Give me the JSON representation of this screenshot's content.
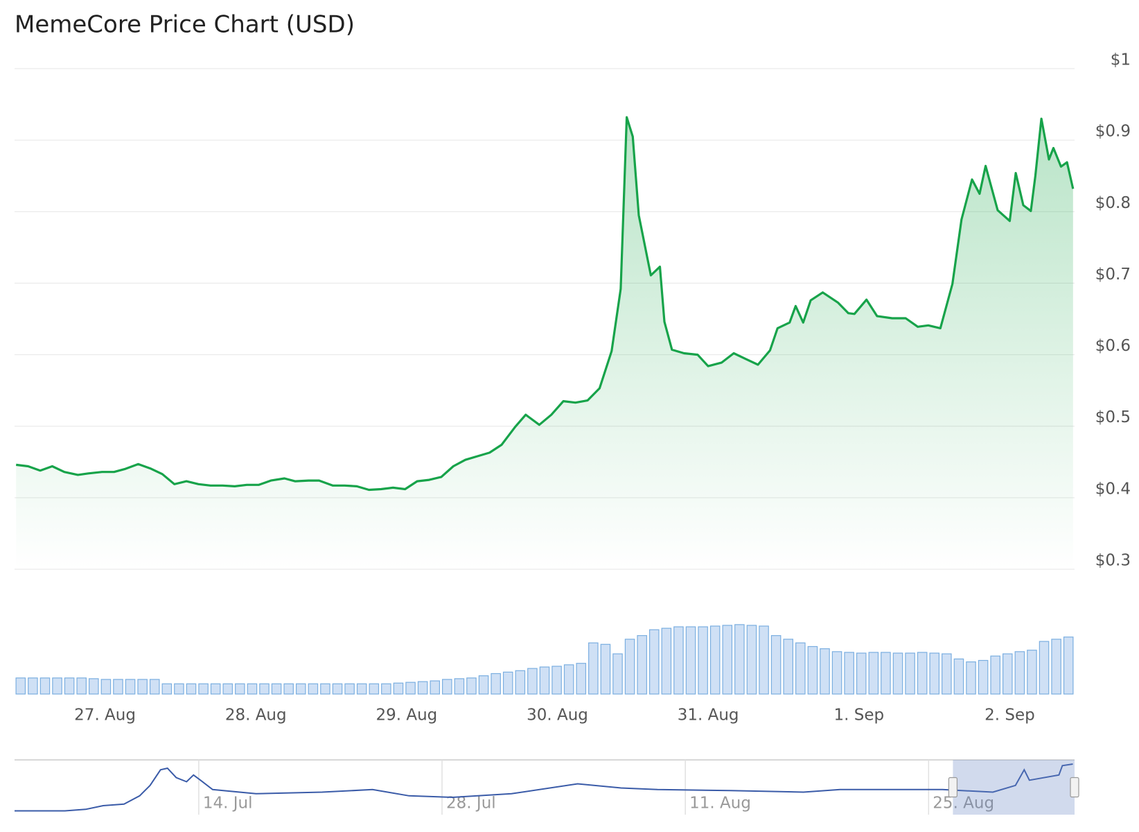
{
  "chart_data": [
    {
      "type": "area",
      "title": "MemeCore Price Chart (USD)",
      "color": "#17a34a",
      "grid": true,
      "x": [
        0.41,
        0.49,
        0.57,
        0.65,
        0.73,
        0.82,
        0.89,
        0.98,
        1.06,
        1.13,
        1.22,
        1.3,
        1.38,
        1.46,
        1.54,
        1.62,
        1.7,
        1.78,
        1.86,
        1.94,
        2.02,
        2.1,
        2.19,
        2.26,
        2.35,
        2.42,
        2.51,
        2.59,
        2.67,
        2.75,
        2.83,
        2.91,
        2.99,
        3.07,
        3.15,
        3.23,
        3.31,
        3.39,
        3.47,
        3.55,
        3.63,
        3.72,
        3.79,
        3.88,
        3.96,
        4.04,
        4.12,
        4.2,
        4.28,
        4.36,
        4.42,
        4.46,
        4.5,
        4.54,
        4.62,
        4.68,
        4.71,
        4.76,
        4.84,
        4.93,
        5.0,
        5.09,
        5.17,
        5.25,
        5.33,
        5.41,
        5.46,
        5.54,
        5.58,
        5.63,
        5.68,
        5.76,
        5.86,
        5.93,
        5.97,
        6.05,
        6.12,
        6.22,
        6.31,
        6.39,
        6.46,
        6.54,
        6.62,
        6.68,
        6.75,
        6.8,
        6.84,
        6.92,
        7.0,
        7.04,
        7.09,
        7.14,
        7.17,
        7.21,
        7.26,
        7.29,
        7.34,
        7.38,
        7.42
      ],
      "values": [
        0.446,
        0.444,
        0.438,
        0.444,
        0.436,
        0.432,
        0.434,
        0.436,
        0.436,
        0.44,
        0.447,
        0.441,
        0.433,
        0.419,
        0.423,
        0.419,
        0.417,
        0.417,
        0.416,
        0.418,
        0.418,
        0.424,
        0.427,
        0.423,
        0.424,
        0.424,
        0.417,
        0.417,
        0.416,
        0.411,
        0.412,
        0.414,
        0.412,
        0.423,
        0.425,
        0.429,
        0.444,
        0.453,
        0.458,
        0.463,
        0.474,
        0.499,
        0.516,
        0.502,
        0.516,
        0.535,
        0.533,
        0.536,
        0.553,
        0.605,
        0.692,
        0.932,
        0.905,
        0.795,
        0.711,
        0.723,
        0.646,
        0.607,
        0.602,
        0.6,
        0.584,
        0.589,
        0.602,
        0.594,
        0.586,
        0.606,
        0.637,
        0.645,
        0.668,
        0.645,
        0.676,
        0.687,
        0.673,
        0.658,
        0.657,
        0.677,
        0.654,
        0.651,
        0.651,
        0.639,
        0.641,
        0.637,
        0.699,
        0.789,
        0.845,
        0.825,
        0.864,
        0.802,
        0.787,
        0.854,
        0.809,
        0.801,
        0.85,
        0.93,
        0.873,
        0.889,
        0.863,
        0.869,
        0.832
      ],
      "xlim": [
        0.4,
        7.43
      ],
      "xticks": [
        {
          "value": 1,
          "label": "27. Aug"
        },
        {
          "value": 2,
          "label": "28. Aug"
        },
        {
          "value": 3,
          "label": "29. Aug"
        },
        {
          "value": 4,
          "label": "30. Aug"
        },
        {
          "value": 5,
          "label": "31. Aug"
        },
        {
          "value": 6,
          "label": "1. Sep"
        },
        {
          "value": 7,
          "label": "2. Sep"
        }
      ],
      "ylim": [
        0.3,
        1
      ],
      "yticks": [
        {
          "value": 1,
          "label": "$1"
        },
        {
          "value": 0.9,
          "label": "$0.9"
        },
        {
          "value": 0.8,
          "label": "$0.8"
        },
        {
          "value": 0.7,
          "label": "$0.7"
        },
        {
          "value": 0.6,
          "label": "$0.6"
        },
        {
          "value": 0.5,
          "label": "$0.5"
        },
        {
          "value": 0.4,
          "label": "$0.4"
        },
        {
          "value": 0.3,
          "label": "$0.3"
        }
      ]
    },
    {
      "type": "bar",
      "color": "#cfe0f5",
      "values": [
        22,
        22,
        22,
        22,
        22,
        22,
        21,
        20,
        20,
        20,
        20,
        20,
        14,
        14,
        14,
        14,
        14,
        14,
        14,
        14,
        14,
        14,
        14,
        14,
        14,
        14,
        14,
        14,
        14,
        14,
        14,
        15,
        16,
        17,
        18,
        20,
        21,
        22,
        25,
        28,
        30,
        32,
        35,
        37,
        38,
        40,
        42,
        70,
        68,
        55,
        75,
        80,
        88,
        90,
        92,
        92,
        92,
        93,
        94,
        95,
        94,
        93,
        80,
        75,
        70,
        65,
        62,
        58,
        57,
        56,
        57,
        57,
        56,
        56,
        57,
        56,
        55,
        48,
        44,
        46,
        52,
        55,
        58,
        60,
        72,
        75,
        78
      ]
    },
    {
      "type": "line",
      "color": "#3a5ba8",
      "x": [
        -10.6,
        -7.7,
        -6.5,
        -5.5,
        -4.3,
        -3.4,
        -2.8,
        -2.2,
        -1.8,
        -1.3,
        -0.7,
        -0.3,
        0.1,
        0.8,
        3.3,
        7.1,
        10.0,
        12.1,
        14.6,
        18.0,
        21.8,
        24.3,
        26.4,
        30.6,
        34.8,
        36.9,
        42.8,
        45.7,
        47.0,
        47.5,
        47.8,
        49.5,
        49.7,
        50.3
      ],
      "values": [
        0.02,
        0.02,
        0.05,
        0.12,
        0.15,
        0.31,
        0.51,
        0.81,
        0.84,
        0.66,
        0.58,
        0.71,
        0.61,
        0.43,
        0.35,
        0.38,
        0.43,
        0.31,
        0.28,
        0.35,
        0.54,
        0.46,
        0.43,
        0.41,
        0.38,
        0.43,
        0.43,
        0.38,
        0.51,
        0.81,
        0.61,
        0.71,
        0.89,
        0.92
      ],
      "xlim": [
        -10.6,
        50.4
      ],
      "xticks": [
        {
          "value": 0,
          "label": "14. Jul"
        },
        {
          "value": 14,
          "label": "28. Jul"
        },
        {
          "value": 28,
          "label": "11. Aug"
        },
        {
          "value": 42,
          "label": "25. Aug"
        }
      ],
      "selection": [
        43.4,
        50.4
      ]
    }
  ]
}
